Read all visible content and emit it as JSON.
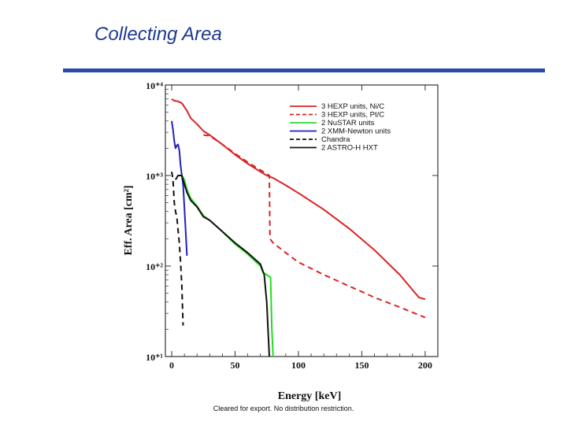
{
  "slide": {
    "title": "Collecting Area",
    "footer": "Cleared for export. No distribution restriction."
  },
  "chart_data": {
    "type": "line",
    "xlabel": "Energy [keV]",
    "ylabel": "Eff. Area [cm²]",
    "xlim": [
      -5,
      210
    ],
    "ylim": [
      10,
      10000
    ],
    "y_scale": "log",
    "x_ticks": [
      0,
      50,
      100,
      150,
      200
    ],
    "y_ticks": [
      {
        "value": 10,
        "label": "10⁺¹"
      },
      {
        "value": 100,
        "label": "10⁺²"
      },
      {
        "value": 1000,
        "label": "10⁺³"
      },
      {
        "value": 10000,
        "label": "10⁺⁴"
      }
    ],
    "grid": false,
    "legend_position": "top-right",
    "series": [
      {
        "name": "3 HEXP units, Ni/C",
        "color": "#dd2222",
        "dash": "solid",
        "x": [
          0,
          2,
          5,
          8,
          12,
          15,
          20,
          25,
          30,
          40,
          50,
          60,
          70,
          75,
          80,
          90,
          100,
          120,
          140,
          160,
          180,
          195,
          200
        ],
        "y": [
          7000,
          6700,
          6600,
          6300,
          5200,
          4300,
          3700,
          3100,
          2800,
          2200,
          1700,
          1350,
          1100,
          1000,
          940,
          780,
          640,
          420,
          260,
          150,
          80,
          45,
          43
        ]
      },
      {
        "name": "3 HEXP units, Pt/C",
        "color": "#dd2222",
        "dash": "dashed",
        "x": [
          25,
          30,
          40,
          50,
          60,
          70,
          77,
          77.5,
          80,
          90,
          100,
          120,
          140,
          160,
          180,
          200
        ],
        "y": [
          2800,
          2750,
          2200,
          1750,
          1400,
          1150,
          1000,
          200,
          180,
          140,
          110,
          80,
          60,
          45,
          35,
          27
        ]
      },
      {
        "name": "2 NuSTAR units",
        "color": "#22dd22",
        "dash": "solid",
        "x": [
          8,
          10,
          12,
          15,
          20,
          25,
          30,
          40,
          50,
          60,
          70,
          72,
          78,
          79,
          80
        ],
        "y": [
          1000,
          900,
          700,
          560,
          460,
          360,
          320,
          240,
          175,
          135,
          100,
          85,
          75,
          20,
          8
        ]
      },
      {
        "name": "2 XMM-Newton units",
        "color": "#2222bb",
        "dash": "solid",
        "x": [
          0,
          1,
          2,
          3,
          4,
          5,
          6,
          7,
          8,
          9,
          10,
          11,
          12
        ],
        "y": [
          4000,
          3200,
          2400,
          2000,
          2150,
          2200,
          1900,
          1300,
          1000,
          800,
          450,
          250,
          130
        ]
      },
      {
        "name": "Chandra",
        "color": "#111111",
        "dash": "dashed",
        "x": [
          0,
          1,
          2,
          3,
          4,
          5,
          6,
          7,
          8,
          9
        ],
        "y": [
          1100,
          900,
          500,
          400,
          350,
          250,
          180,
          110,
          60,
          22
        ]
      },
      {
        "name": "2 ASTRO-H HXT",
        "color": "#111111",
        "dash": "solid",
        "x": [
          3,
          5,
          8,
          10,
          12,
          15,
          20,
          25,
          30,
          40,
          50,
          60,
          70,
          73,
          75,
          77
        ],
        "y": [
          900,
          1000,
          1000,
          800,
          650,
          530,
          450,
          350,
          320,
          240,
          180,
          140,
          105,
          80,
          40,
          10
        ]
      }
    ]
  }
}
